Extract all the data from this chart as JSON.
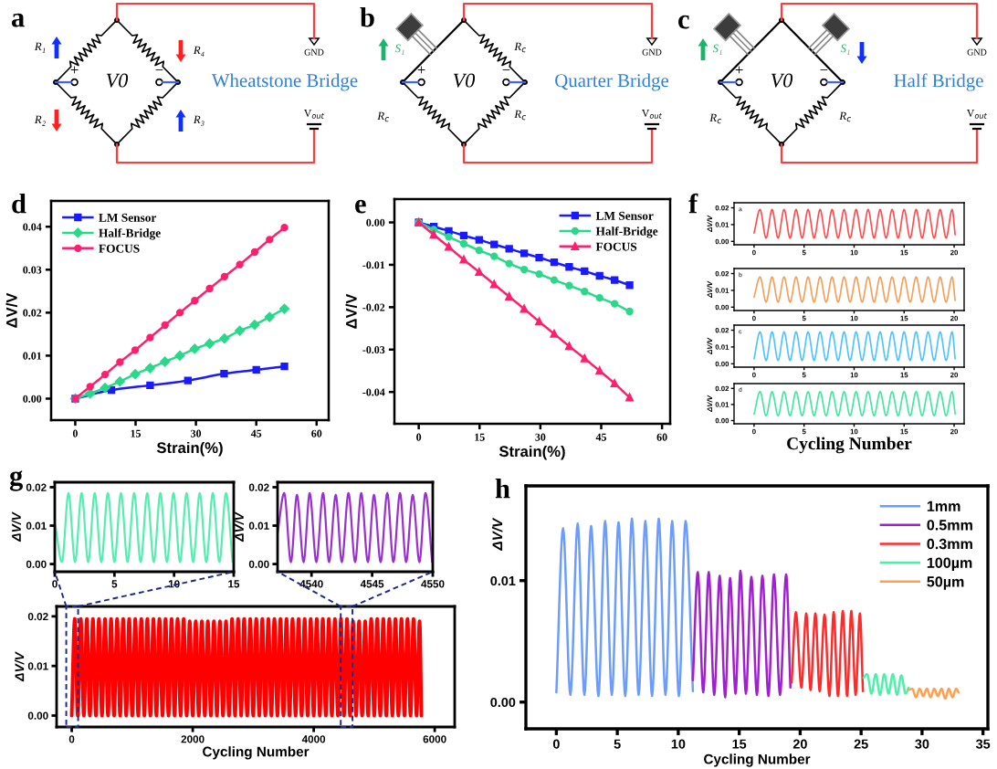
{
  "chart_data": [
    {
      "type": "other",
      "annotations": [
        "a",
        "R₁",
        "R₄",
        "R₂",
        "R₃",
        "V0",
        "+",
        "−",
        "GND",
        "V$_{out}$",
        "Wheatstone Bridge"
      ]
    },
    {
      "type": "other",
      "annotations": [
        "b",
        "S₁",
        "R$_{c}$",
        "R$_{c}$",
        "R$_{c}$",
        "V0",
        "+",
        "−",
        "GND",
        "V$_{out}$",
        "Quarter Bridge"
      ]
    },
    {
      "type": "other",
      "annotations": [
        "c",
        "S₁",
        "S₁",
        "R$_{c}$",
        "R$_{c}$",
        "V0",
        "+",
        "−",
        "GND",
        "V$_{out}$",
        "Half Bridge"
      ]
    },
    {
      "type": "line",
      "annotations": [
        "d"
      ],
      "xlabel": "Strain(%)",
      "ylabel": "ΔV/V",
      "xlim": [
        -6,
        63
      ],
      "ylim": [
        -0.005,
        0.046
      ],
      "xticks": [
        0,
        15,
        30,
        45,
        60
      ],
      "yticks": [
        {
          "value": 0,
          "label": "0.00"
        },
        {
          "value": 0.01,
          "label": "0.01"
        },
        {
          "value": 0.02,
          "label": "0.02"
        },
        {
          "value": 0.03,
          "label": "0.03"
        },
        {
          "value": 0.04,
          "label": "0.04"
        }
      ],
      "legend": "top left",
      "series": [
        {
          "name": "LM Sensor",
          "color": "#1a1aff",
          "marker": "square",
          "x": [
            0,
            9,
            18.6,
            28,
            37,
            45,
            52
          ],
          "values": [
            0,
            0.002,
            0.0031,
            0.0042,
            0.0058,
            0.0067,
            0.0075
          ]
        },
        {
          "name": "Half-Bridge",
          "color": "#2ad88a",
          "marker": "diamond",
          "x": [
            0,
            3.7,
            7.4,
            11.1,
            14.9,
            18.6,
            22.3,
            26,
            29.7,
            33.4,
            37.1,
            40.9,
            44.6,
            48.3,
            52
          ],
          "values": [
            0,
            0.0012,
            0.0025,
            0.004,
            0.0057,
            0.0071,
            0.0086,
            0.01,
            0.0116,
            0.0128,
            0.014,
            0.0158,
            0.0172,
            0.019,
            0.0209
          ]
        },
        {
          "name": "FOCUS",
          "color": "#ff1f6e",
          "marker": "circle",
          "x": [
            0,
            3.7,
            7.4,
            11.1,
            14.9,
            18.6,
            22.3,
            26,
            29.7,
            33.4,
            37.1,
            40.9,
            44.6,
            48.3,
            52
          ],
          "values": [
            0,
            0.0028,
            0.0056,
            0.0085,
            0.0113,
            0.0142,
            0.0171,
            0.02,
            0.0228,
            0.0256,
            0.0284,
            0.0312,
            0.0341,
            0.037,
            0.0398
          ]
        }
      ]
    },
    {
      "type": "line",
      "annotations": [
        "e"
      ],
      "xlabel": "Strain(%)",
      "ylabel": "ΔV/V",
      "xlim": [
        -6,
        62
      ],
      "ylim": [
        -0.0475,
        0.0055
      ],
      "xticks": [
        0,
        15,
        30,
        45,
        60
      ],
      "yticks": [
        {
          "value": 0,
          "label": "0.00"
        },
        {
          "value": -0.01,
          "label": "-0.01"
        },
        {
          "value": -0.02,
          "label": "-0.02"
        },
        {
          "value": -0.03,
          "label": "-0.03"
        },
        {
          "value": -0.04,
          "label": "-0.04"
        }
      ],
      "legend": "top right",
      "series": [
        {
          "name": "LM Sensor",
          "color": "#1a1aff",
          "marker": "square",
          "x": [
            0,
            3.7,
            7.4,
            11.1,
            14.9,
            18.6,
            22.3,
            26,
            29.7,
            33.4,
            37.1,
            40.9,
            44.6,
            48.3,
            52
          ],
          "values": [
            0,
            -0.001,
            -0.002,
            -0.0031,
            -0.0041,
            -0.0052,
            -0.0062,
            -0.0073,
            -0.0083,
            -0.0094,
            -0.0105,
            -0.0115,
            -0.0126,
            -0.0136,
            -0.0148
          ]
        },
        {
          "name": "Half-Bridge",
          "color": "#2ad88a",
          "marker": "circle",
          "x": [
            0,
            3.7,
            7.4,
            11.1,
            14.9,
            18.6,
            22.3,
            26,
            29.7,
            33.4,
            37.1,
            40.9,
            44.6,
            48.3,
            52
          ],
          "values": [
            0,
            -0.0017,
            -0.0034,
            -0.005,
            -0.0066,
            -0.008,
            -0.0097,
            -0.0111,
            -0.0122,
            -0.0136,
            -0.0149,
            -0.0163,
            -0.0178,
            -0.0192,
            -0.021
          ]
        },
        {
          "name": "FOCUS",
          "color": "#ff1f6e",
          "marker": "triangle",
          "x": [
            0,
            3.7,
            7.4,
            11.1,
            14.9,
            18.6,
            22.3,
            26,
            29.7,
            33.4,
            37.1,
            40.9,
            44.6,
            48.3,
            52
          ],
          "values": [
            0,
            -0.0029,
            -0.0058,
            -0.0088,
            -0.0117,
            -0.0146,
            -0.0175,
            -0.0204,
            -0.0234,
            -0.0263,
            -0.0292,
            -0.0321,
            -0.035,
            -0.038,
            -0.0413
          ]
        }
      ]
    },
    {
      "type": "line",
      "annotations": [
        "f",
        "a"
      ],
      "ylabel": "ΔV/V",
      "xlim": [
        -2,
        21
      ],
      "ylim": [
        -0.002,
        0.023
      ],
      "xticks": [
        0,
        5,
        10,
        15,
        20
      ],
      "yticks": [
        {
          "value": 0,
          "label": "0.00"
        },
        {
          "value": 0.01,
          "label": "0.01"
        },
        {
          "value": 0.02,
          "label": "0.02"
        }
      ],
      "x": [
        0,
        0.6,
        1.2,
        1.8,
        2.4,
        3.0,
        3.6,
        4.2,
        4.8,
        5.4,
        6.0,
        6.6,
        7.2,
        7.8,
        8.4,
        9.0,
        9.6,
        10.2,
        10.8,
        11.4,
        12.0,
        12.6,
        13.2,
        13.8,
        14.4,
        15.0,
        15.6,
        16.2,
        16.8,
        17.4,
        18.0,
        18.6,
        19.2,
        19.8,
        20.1
      ],
      "series": [
        {
          "color": "#ff4d4d",
          "values": [
            0.005,
            0.019,
            0.002,
            0.019,
            0.002,
            0.019,
            0.002,
            0.019,
            0.002,
            0.019,
            0.002,
            0.019,
            0.002,
            0.019,
            0.002,
            0.019,
            0.002,
            0.019,
            0.002,
            0.019,
            0.002,
            0.019,
            0.002,
            0.019,
            0.002,
            0.019,
            0.002,
            0.019,
            0.002,
            0.019,
            0.002,
            0.019,
            0.002,
            0.019,
            0.004
          ]
        }
      ]
    },
    {
      "type": "line",
      "annotations": [
        "b"
      ],
      "ylabel": "ΔV/V",
      "xlim": [
        -2,
        21
      ],
      "ylim": [
        -0.002,
        0.023
      ],
      "xticks": [
        0,
        5,
        10,
        15,
        20
      ],
      "yticks": [
        {
          "value": 0,
          "label": "0.00"
        },
        {
          "value": 0.01,
          "label": "0.01"
        },
        {
          "value": 0.02,
          "label": "0.02"
        }
      ],
      "x": [
        0,
        0.6,
        1.2,
        1.8,
        2.4,
        3.0,
        3.6,
        4.2,
        4.8,
        5.4,
        6.0,
        6.6,
        7.2,
        7.8,
        8.4,
        9.0,
        9.6,
        10.2,
        10.8,
        11.4,
        12.0,
        12.6,
        13.2,
        13.8,
        14.4,
        15.0,
        15.6,
        16.2,
        16.8,
        17.4,
        18.0,
        18.6,
        19.2,
        19.8,
        20.1
      ],
      "series": [
        {
          "color": "#f5a05a",
          "values": [
            0.006,
            0.018,
            0.003,
            0.018,
            0.003,
            0.018,
            0.003,
            0.018,
            0.003,
            0.018,
            0.003,
            0.018,
            0.003,
            0.018,
            0.003,
            0.018,
            0.003,
            0.018,
            0.003,
            0.018,
            0.003,
            0.018,
            0.003,
            0.018,
            0.003,
            0.018,
            0.003,
            0.018,
            0.003,
            0.018,
            0.003,
            0.018,
            0.003,
            0.018,
            0.004
          ]
        }
      ]
    },
    {
      "type": "line",
      "annotations": [
        "c"
      ],
      "ylabel": "ΔV/V",
      "xlim": [
        -2,
        21
      ],
      "ylim": [
        -0.002,
        0.023
      ],
      "xticks": [
        0,
        5,
        10,
        15,
        20
      ],
      "yticks": [
        {
          "value": 0,
          "label": "0.00"
        },
        {
          "value": 0.01,
          "label": "0.01"
        },
        {
          "value": 0.02,
          "label": "0.02"
        }
      ],
      "x": [
        0,
        0.6,
        1.2,
        1.8,
        2.4,
        3.0,
        3.6,
        4.2,
        4.8,
        5.4,
        6.0,
        6.6,
        7.2,
        7.8,
        8.4,
        9.0,
        9.6,
        10.2,
        10.8,
        11.4,
        12.0,
        12.6,
        13.2,
        13.8,
        14.4,
        15.0,
        15.6,
        16.2,
        16.8,
        17.4,
        18.0,
        18.6,
        19.2,
        19.8,
        20.1
      ],
      "series": [
        {
          "color": "#4dc3ff",
          "values": [
            0.003,
            0.019,
            0.002,
            0.019,
            0.002,
            0.019,
            0.002,
            0.019,
            0.002,
            0.019,
            0.002,
            0.019,
            0.002,
            0.019,
            0.002,
            0.019,
            0.002,
            0.019,
            0.002,
            0.019,
            0.002,
            0.019,
            0.002,
            0.019,
            0.002,
            0.019,
            0.002,
            0.019,
            0.002,
            0.019,
            0.002,
            0.019,
            0.002,
            0.019,
            0.003
          ]
        }
      ]
    },
    {
      "type": "line",
      "annotations": [
        "d"
      ],
      "xlabel": "Cycling Number",
      "ylabel": "ΔV/V",
      "xlim": [
        -2,
        21
      ],
      "ylim": [
        -0.002,
        0.023
      ],
      "xticks": [
        0,
        5,
        10,
        15,
        20
      ],
      "yticks": [
        {
          "value": 0,
          "label": "0.00"
        },
        {
          "value": 0.01,
          "label": "0.01"
        },
        {
          "value": 0.02,
          "label": "0.02"
        }
      ],
      "x": [
        0,
        0.6,
        1.2,
        1.8,
        2.4,
        3.0,
        3.6,
        4.2,
        4.8,
        5.4,
        6.0,
        6.6,
        7.2,
        7.8,
        8.4,
        9.0,
        9.6,
        10.2,
        10.8,
        11.4,
        12.0,
        12.6,
        13.2,
        13.8,
        14.4,
        15.0,
        15.6,
        16.2,
        16.8,
        17.4,
        18.0,
        18.6,
        19.2,
        19.8,
        20.1
      ],
      "series": [
        {
          "color": "#45e6a0",
          "values": [
            0.004,
            0.018,
            0.003,
            0.018,
            0.003,
            0.018,
            0.003,
            0.018,
            0.003,
            0.018,
            0.003,
            0.018,
            0.003,
            0.018,
            0.003,
            0.018,
            0.003,
            0.018,
            0.003,
            0.018,
            0.003,
            0.018,
            0.003,
            0.018,
            0.003,
            0.018,
            0.003,
            0.018,
            0.003,
            0.018,
            0.003,
            0.018,
            0.003,
            0.018,
            0.004
          ]
        }
      ]
    },
    {
      "type": "line",
      "annotations": [
        "g"
      ],
      "ylabel": "ΔV/V",
      "xlim": [
        0,
        15
      ],
      "ylim": [
        -0.002,
        0.0213
      ],
      "xticks": [
        0,
        5,
        10,
        15
      ],
      "yticks": [
        {
          "value": 0,
          "label": "0.00"
        },
        {
          "value": 0.01,
          "label": "0.01"
        },
        {
          "value": 0.02,
          "label": "0.02"
        }
      ],
      "x": [
        0.05,
        0.6,
        1.15,
        1.7,
        2.25,
        2.8,
        3.35,
        3.9,
        4.45,
        5.0,
        5.55,
        6.1,
        6.65,
        7.2,
        7.75,
        8.3,
        8.85,
        9.4,
        9.95,
        10.5,
        11.05,
        11.6,
        12.15,
        12.7,
        13.25,
        13.8,
        14.35,
        14.9
      ],
      "series": [
        {
          "color": "#55eeb0",
          "values": [
            0.01,
            0.0005,
            0.0185,
            0.0005,
            0.0185,
            0.0005,
            0.0185,
            0.0005,
            0.0185,
            0.0005,
            0.0185,
            0.0005,
            0.0185,
            0.0005,
            0.0185,
            0.0005,
            0.0185,
            0.0005,
            0.0185,
            0.0005,
            0.0185,
            0.0005,
            0.0185,
            0.0005,
            0.0185,
            0.0005,
            0.0185,
            0.0005
          ]
        }
      ]
    },
    {
      "type": "line",
      "ylabel": "ΔV/V",
      "xlim": [
        4537.2,
        4550
      ],
      "ylim": [
        -0.002,
        0.0213
      ],
      "xticks": [
        4540,
        4545,
        4550
      ],
      "yticks": [
        {
          "value": 0,
          "label": "0.00"
        },
        {
          "value": 0.01,
          "label": "0.01"
        },
        {
          "value": 0.02,
          "label": "0.02"
        }
      ],
      "x": [
        4537.2,
        4537.75,
        4538.3,
        4538.8,
        4539.35,
        4539.85,
        4540.4,
        4540.95,
        4541.45,
        4542.0,
        4542.5,
        4543.05,
        4543.6,
        4544.1,
        4544.65,
        4545.15,
        4545.7,
        4546.25,
        4546.75,
        4547.3,
        4547.8,
        4548.35,
        4548.9,
        4549.4,
        4549.95
      ],
      "series": [
        {
          "color": "#9b30d0",
          "values": [
            0.008,
            0.0185,
            0.0005,
            0.018,
            0.0005,
            0.0185,
            0.0005,
            0.0185,
            0.0005,
            0.018,
            0.0005,
            0.0185,
            0.0005,
            0.0185,
            0.0005,
            0.018,
            0.0005,
            0.0185,
            0.0005,
            0.0185,
            0.0005,
            0.018,
            0.0005,
            0.0185,
            0.0005
          ]
        }
      ]
    },
    {
      "type": "line",
      "xlabel": "Cycling Number",
      "ylabel": "ΔV/V",
      "xlim": [
        -250,
        6330
      ],
      "ylim": [
        -0.0023,
        0.022
      ],
      "xticks": [
        0,
        2000,
        4000,
        6000
      ],
      "yticks": [
        {
          "value": 0,
          "label": "0.00"
        },
        {
          "value": 0.01,
          "label": "0.01"
        },
        {
          "value": 0.02,
          "label": "0.02"
        }
      ],
      "x": [
        0,
        50,
        100,
        150,
        200,
        250,
        300,
        350,
        400,
        450,
        500,
        550,
        600,
        650,
        700,
        750,
        800,
        850,
        900,
        950,
        1000,
        1050,
        1100,
        1150,
        1200,
        1250,
        1300,
        1350,
        1400,
        1450,
        1500,
        1550,
        1600,
        1650,
        1700,
        1750,
        1800,
        1850,
        1900,
        1950,
        2000,
        2050,
        2100,
        2150,
        2200,
        2250,
        2300,
        2350,
        2400,
        2450,
        2500,
        2550,
        2600,
        2650,
        2700,
        2750,
        2800,
        2850,
        2900,
        2950,
        3000,
        3050,
        3100,
        3150,
        3200,
        3250,
        3300,
        3350,
        3400,
        3450,
        3500,
        3550,
        3600,
        3650,
        3700,
        3750,
        3800,
        3850,
        3900,
        3950,
        4000,
        4050,
        4100,
        4150,
        4200,
        4250,
        4300,
        4350,
        4400,
        4450,
        4500,
        4550,
        4600,
        4650,
        4700,
        4750,
        4800,
        4850,
        4900,
        4950,
        5000,
        5050,
        5100,
        5150,
        5200,
        5250,
        5300,
        5350,
        5400,
        5450,
        5500,
        5550,
        5600,
        5650,
        5700,
        5750,
        5780
      ],
      "series": [
        {
          "color": "#ff0000",
          "values": [
            0,
            0.0195,
            0,
            0.0195,
            0,
            0.0195,
            0,
            0.0195,
            0,
            0.0195,
            0,
            0.0195,
            0,
            0.0195,
            0,
            0.0195,
            0,
            0.0195,
            0,
            0.0195,
            0,
            0.0195,
            0,
            0.0195,
            0,
            0.0195,
            0,
            0.0195,
            0,
            0.0195,
            0,
            0.0195,
            0,
            0.0195,
            0,
            0.0195,
            0,
            0.0195,
            0,
            0.019,
            0,
            0.019,
            0,
            0.019,
            0,
            0.019,
            0,
            0.019,
            0,
            0.019,
            0,
            0.019,
            0,
            0.0195,
            0,
            0.0195,
            0,
            0.0195,
            0,
            0.0195,
            0,
            0.0195,
            0,
            0.0195,
            0,
            0.0195,
            0,
            0.0195,
            0,
            0.0195,
            0,
            0.0195,
            0,
            0.0195,
            0,
            0.0195,
            0,
            0.0195,
            0,
            0.0195,
            0,
            0.0195,
            0,
            0.0195,
            0,
            0.0195,
            0,
            0.0195,
            0,
            0.0195,
            0,
            0.0195,
            0,
            0.019,
            0,
            0.019,
            0,
            0.019,
            0,
            0.0195,
            0,
            0.0195,
            0,
            0.0195,
            0,
            0.0195,
            0,
            0.0195,
            0,
            0.0195,
            0,
            0.0195,
            0,
            0.0195,
            0,
            0.019,
            0
          ]
        }
      ]
    },
    {
      "type": "line",
      "annotations": [
        "h"
      ],
      "xlabel": "Cycling Number",
      "ylabel": "ΔV/V",
      "xlim": [
        -2.5,
        35.4
      ],
      "ylim": [
        -0.0022,
        0.0178
      ],
      "xticks": [
        0,
        5,
        10,
        15,
        20,
        25,
        30,
        35
      ],
      "yticks": [
        {
          "value": 0,
          "label": "0.00"
        },
        {
          "value": 0.01,
          "label": "0.01"
        }
      ],
      "legend": "top right",
      "series": [
        {
          "name": "1mm",
          "color": "#6c9cff",
          "x": [
            0,
            0.55,
            1.15,
            1.75,
            2.3,
            2.85,
            3.45,
            4.0,
            4.55,
            5.1,
            5.65,
            6.2,
            6.75,
            7.3,
            7.85,
            8.4,
            8.95,
            9.5,
            10.05,
            10.6,
            11.2
          ],
          "values": [
            0.0008,
            0.0143,
            0.0006,
            0.0147,
            0.0006,
            0.0145,
            0.0005,
            0.0149,
            0.0006,
            0.0148,
            0.0005,
            0.0151,
            0.0006,
            0.0149,
            0.0005,
            0.0151,
            0.0006,
            0.0149,
            0.0005,
            0.0149,
            0.0009
          ]
        },
        {
          "name": "0.5mm",
          "color": "#a020d0",
          "x": [
            11.2,
            11.6,
            12.05,
            12.5,
            12.95,
            13.4,
            13.85,
            14.25,
            14.7,
            15.1,
            15.55,
            16.0,
            16.45,
            16.9,
            17.4,
            17.85,
            18.35,
            18.85,
            19.2
          ],
          "values": [
            0.0018,
            0.0107,
            0.0008,
            0.0107,
            0.0006,
            0.0104,
            0.0004,
            0.0102,
            0.0007,
            0.0108,
            0.0007,
            0.0103,
            0.0006,
            0.0104,
            0.0005,
            0.0105,
            0.0006,
            0.0105,
            0.0012
          ]
        },
        {
          "name": "0.3mm",
          "color": "#ff2a2a",
          "x": [
            19.3,
            19.65,
            20.1,
            20.5,
            20.85,
            21.25,
            21.6,
            22.0,
            22.4,
            22.75,
            23.1,
            23.5,
            23.85,
            24.2,
            24.55,
            24.9,
            25.15
          ],
          "values": [
            0.0016,
            0.0074,
            0.0012,
            0.0073,
            0.001,
            0.0073,
            0.0009,
            0.0072,
            0.0005,
            0.0074,
            0.0005,
            0.0075,
            0.0005,
            0.0075,
            0.0006,
            0.0073,
            0.0009
          ]
        },
        {
          "name": "100µm",
          "color": "#4cf0a8",
          "x": [
            25.2,
            25.5,
            25.85,
            26.2,
            26.55,
            26.9,
            27.25,
            27.6,
            27.95,
            28.3,
            28.65,
            28.9
          ],
          "values": [
            0.002,
            0.0023,
            0.0007,
            0.0023,
            0.0006,
            0.0023,
            0.0007,
            0.0023,
            0.0006,
            0.0022,
            0.0007,
            0.0012
          ]
        },
        {
          "name": "50µm",
          "color": "#ffa050",
          "x": [
            28.9,
            29.2,
            29.5,
            29.8,
            30.1,
            30.4,
            30.7,
            31.0,
            31.3,
            31.6,
            31.9,
            32.2,
            32.5,
            32.8,
            33.0
          ],
          "values": [
            0.001,
            0.0011,
            0.0004,
            0.0011,
            0.0005,
            0.0011,
            0.0004,
            0.0011,
            0.0005,
            0.0011,
            0.0003,
            0.0011,
            0.0004,
            0.0011,
            0.0008
          ]
        }
      ]
    }
  ]
}
